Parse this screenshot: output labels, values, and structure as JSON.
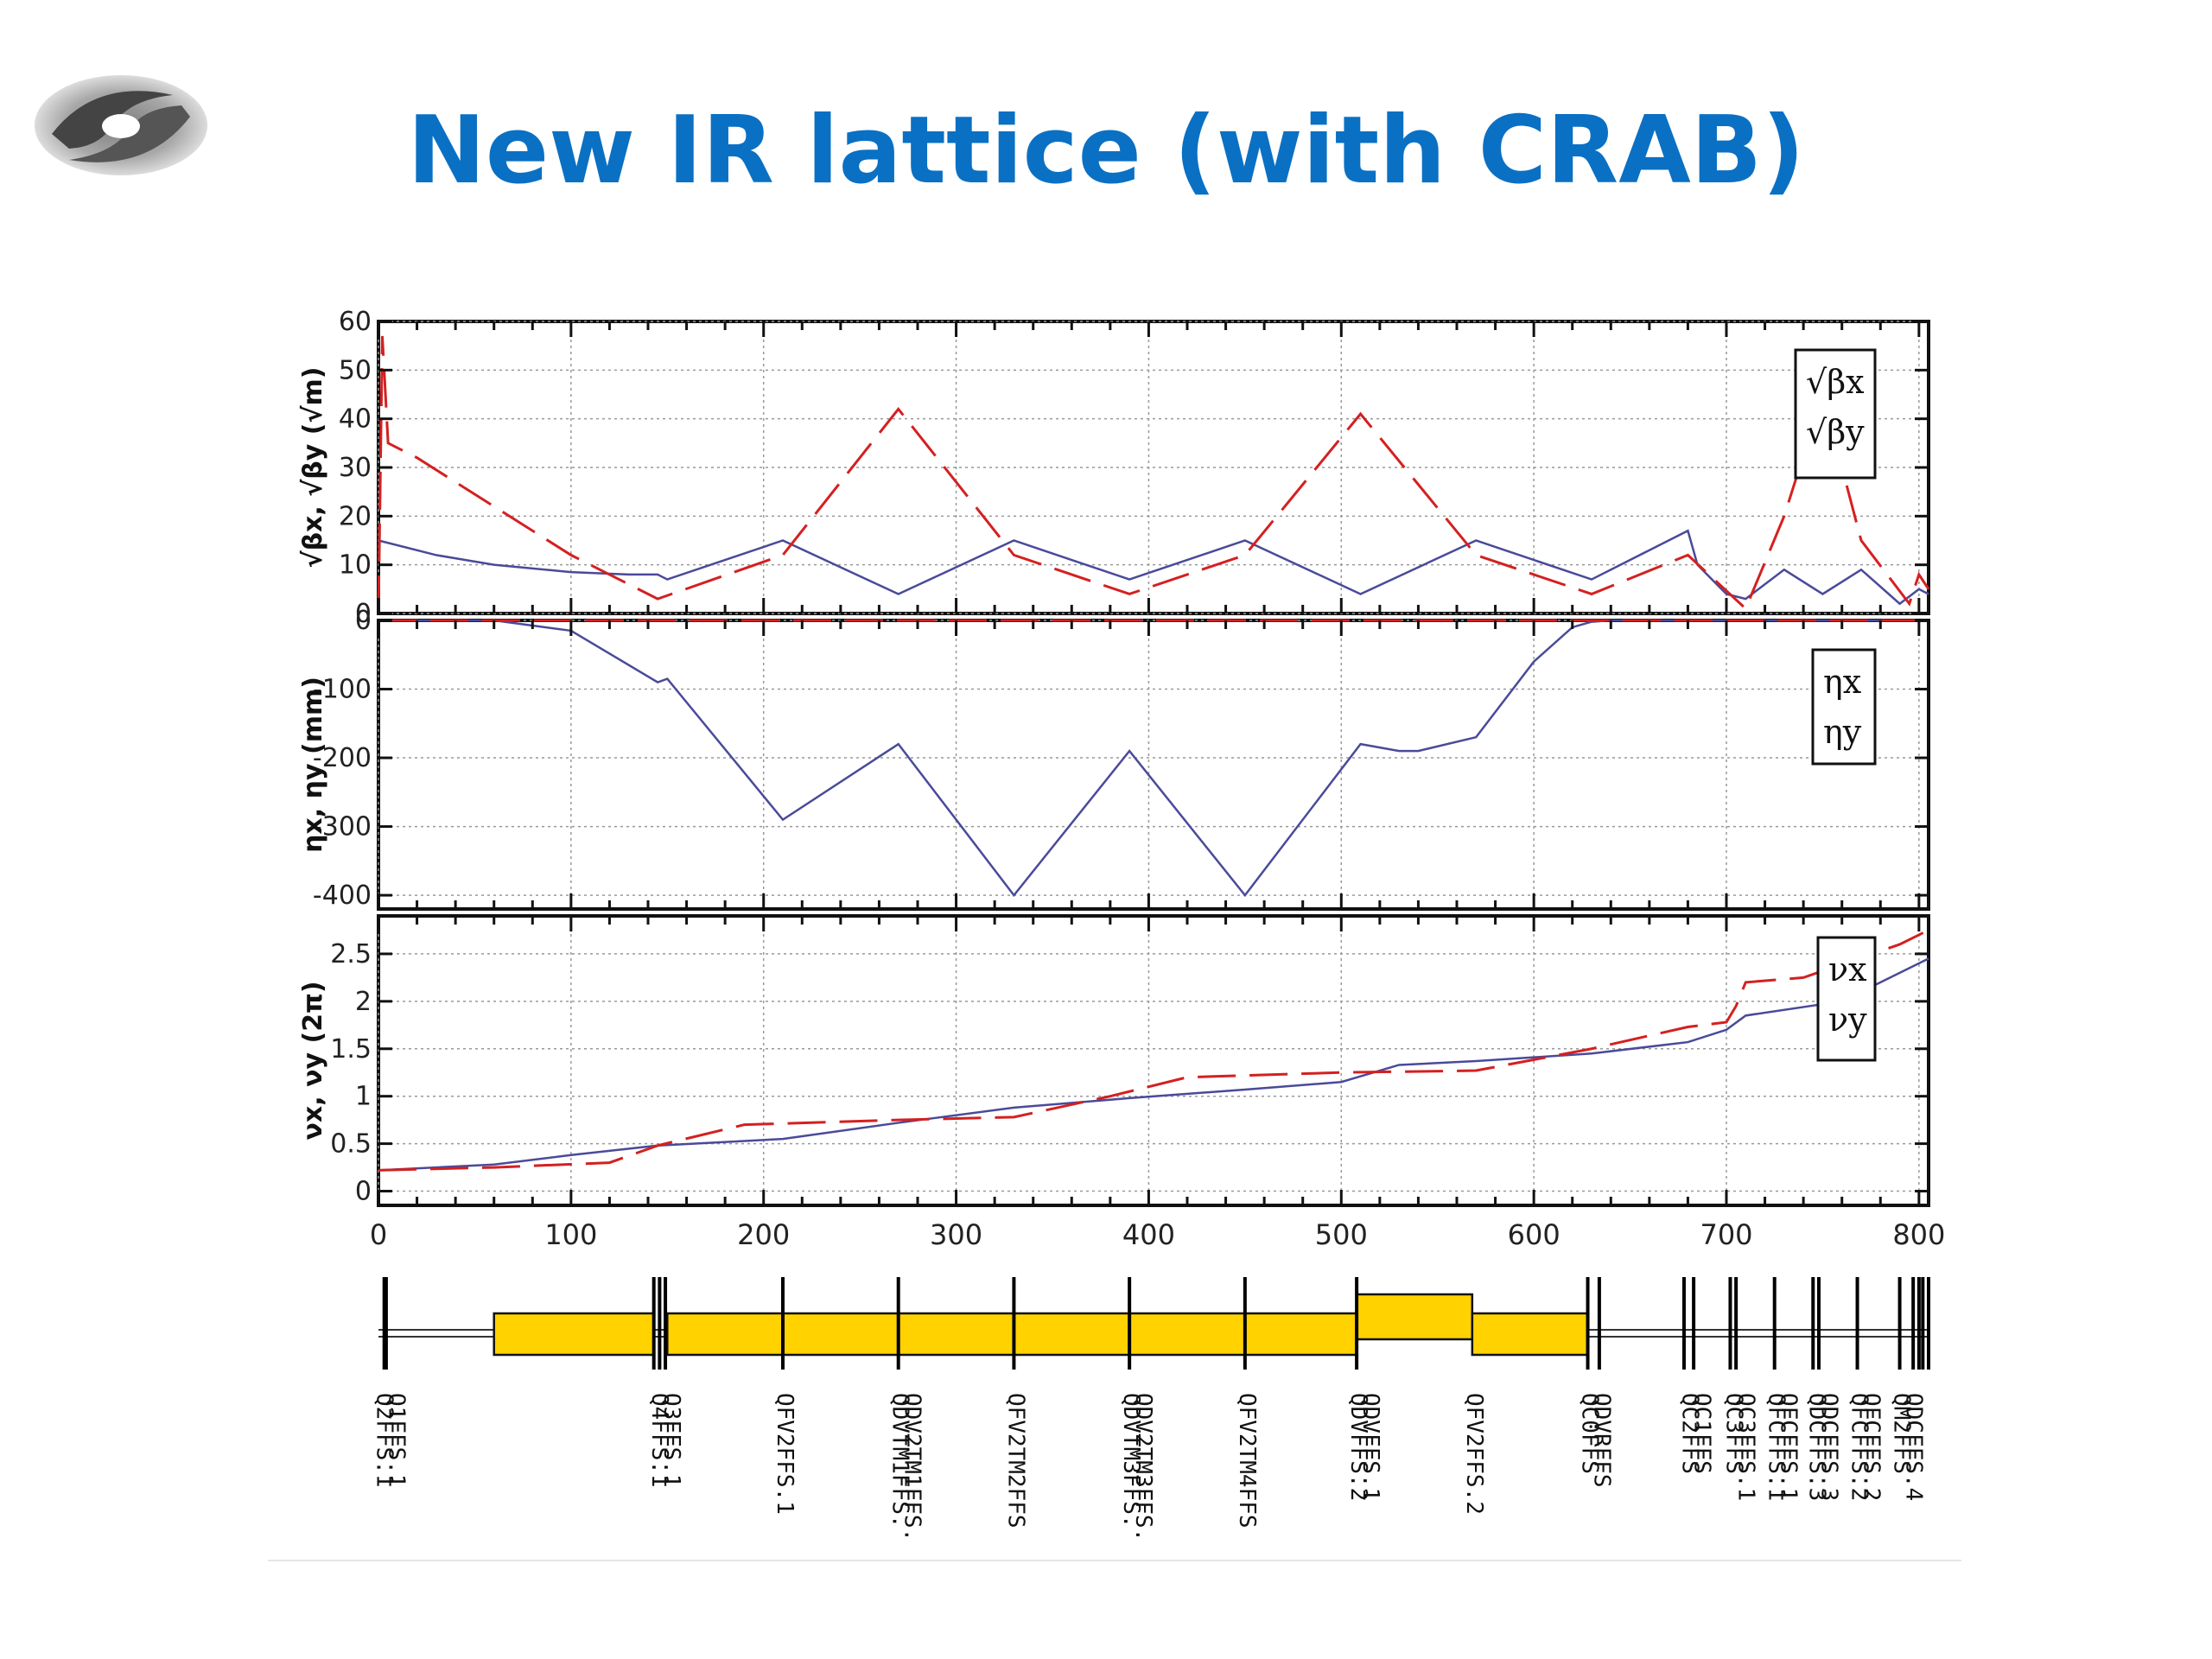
{
  "slide": {
    "title": "New IR lattice (with CRAB)"
  },
  "colors": {
    "title": "#0a70c4",
    "red_series": "#d42020",
    "blue_series": "#4a4a9a",
    "element_fill": "#ffd200"
  },
  "chart_data": [
    {
      "type": "line",
      "panel": "beta",
      "ylabel": "√βx, √βy (√m)",
      "ylim": [
        0,
        60
      ],
      "yticks": [
        "60",
        "50",
        "40",
        "30",
        "20",
        "10",
        "0"
      ],
      "grid": true,
      "legend": [
        "√βx",
        "√βy"
      ],
      "legend_position": "top-right",
      "series": [
        {
          "name": "√βx",
          "color": "#4a4a9a",
          "style": "solid",
          "x": [
            0,
            30,
            60,
            100,
            130,
            145,
            150,
            210,
            270,
            330,
            390,
            450,
            510,
            570,
            630,
            680,
            685,
            700,
            710,
            730,
            750,
            770,
            790,
            800,
            805
          ],
          "y": [
            15,
            12,
            10,
            8.5,
            8,
            8,
            7,
            15,
            4,
            15,
            7,
            15,
            4,
            15,
            7,
            17,
            10,
            4,
            3,
            9,
            4,
            9,
            2,
            5,
            4
          ]
        },
        {
          "name": "√βy",
          "color": "#d42020",
          "style": "dashed",
          "x": [
            0,
            2,
            5,
            20,
            60,
            100,
            145,
            210,
            270,
            330,
            390,
            450,
            510,
            570,
            630,
            680,
            710,
            730,
            750,
            770,
            795,
            800,
            805
          ],
          "y": [
            0,
            57,
            35,
            32,
            22,
            12,
            3,
            12,
            42,
            12,
            4,
            12,
            41,
            12,
            4,
            12,
            1,
            20,
            45,
            15,
            2,
            8,
            5
          ]
        }
      ]
    },
    {
      "type": "line",
      "panel": "dispersion",
      "ylabel": "ηx, ηy (mm)",
      "ylim": [
        -420,
        0
      ],
      "yticks": [
        "0",
        "-100",
        "-200",
        "-300",
        "-400"
      ],
      "grid": true,
      "legend": [
        "ηx",
        "ηy"
      ],
      "legend_position": "top-right",
      "series": [
        {
          "name": "ηx",
          "color": "#4a4a9a",
          "style": "solid",
          "x": [
            0,
            60,
            100,
            145,
            150,
            210,
            270,
            330,
            390,
            450,
            510,
            530,
            540,
            570,
            600,
            620,
            630,
            640,
            805
          ],
          "y": [
            0,
            0,
            -15,
            -90,
            -85,
            -290,
            -180,
            -400,
            -190,
            -400,
            -180,
            -190,
            -190,
            -170,
            -60,
            -10,
            -2,
            0,
            0
          ]
        },
        {
          "name": "ηy",
          "color": "#d42020",
          "style": "dashed",
          "x": [
            0,
            805
          ],
          "y": [
            0,
            0
          ]
        }
      ]
    },
    {
      "type": "line",
      "panel": "phase",
      "ylabel": "νx, νy (2π)",
      "ylim": [
        -0.15,
        2.9
      ],
      "yticks": [
        "2.5",
        "2",
        "1.5",
        "1",
        "0.5",
        "0"
      ],
      "xlim": [
        0,
        805
      ],
      "xticks": [
        "0",
        "100",
        "200",
        "300",
        "400",
        "500",
        "600",
        "700",
        "800"
      ],
      "grid": true,
      "legend": [
        "νx",
        "νy"
      ],
      "legend_position": "top-right",
      "series": [
        {
          "name": "νx",
          "color": "#4a4a9a",
          "style": "solid",
          "x": [
            0,
            60,
            100,
            145,
            210,
            270,
            330,
            390,
            450,
            500,
            530,
            570,
            630,
            680,
            700,
            710,
            760,
            790,
            805
          ],
          "y": [
            0.22,
            0.28,
            0.38,
            0.48,
            0.55,
            0.72,
            0.88,
            0.98,
            1.07,
            1.15,
            1.33,
            1.37,
            1.45,
            1.57,
            1.7,
            1.85,
            2.0,
            2.3,
            2.45
          ]
        },
        {
          "name": "νy",
          "color": "#d42020",
          "style": "dashed",
          "x": [
            0,
            60,
            120,
            145,
            190,
            270,
            330,
            380,
            420,
            500,
            570,
            630,
            680,
            700,
            705,
            710,
            740,
            790,
            805
          ],
          "y": [
            0.22,
            0.25,
            0.3,
            0.48,
            0.7,
            0.75,
            0.78,
            1.0,
            1.2,
            1.25,
            1.27,
            1.5,
            1.73,
            1.78,
            1.95,
            2.2,
            2.25,
            2.6,
            2.75
          ]
        }
      ]
    },
    {
      "type": "element-layout",
      "panel": "lattice",
      "blocks": [
        {
          "x0": 60,
          "x1": 143,
          "level": "low"
        },
        {
          "x0": 150,
          "x1": 508,
          "level": "low"
        },
        {
          "x0": 508,
          "x1": 568,
          "level": "high"
        },
        {
          "x0": 568,
          "x1": 628,
          "level": "low"
        }
      ],
      "markers": [
        3,
        4,
        143,
        146,
        149,
        210,
        270,
        330,
        390,
        450,
        508,
        628,
        634,
        678,
        683,
        702,
        705,
        725,
        745,
        748,
        768,
        790,
        797,
        800,
        802,
        805
      ],
      "labels": [
        {
          "x": 2,
          "lines": [
            "Q2FFS.1",
            "Q1FFS.1"
          ]
        },
        {
          "x": 145,
          "lines": [
            "Q4FFS.1",
            "Q3FFS.1"
          ]
        },
        {
          "x": 210,
          "lines": [
            "QFV2FFS.1"
          ]
        },
        {
          "x": 270,
          "lines": [
            "QDVTM1FFS.",
            "QDV2TM1FFS."
          ]
        },
        {
          "x": 330,
          "lines": [
            "QFV2TM2FFS"
          ]
        },
        {
          "x": 390,
          "lines": [
            "QDVTM3FFS.",
            "QDV2TM3FFS."
          ]
        },
        {
          "x": 450,
          "lines": [
            "QFV2TM4FFS"
          ]
        },
        {
          "x": 508,
          "lines": [
            "QDVFFS.2",
            "QDVFFS.1"
          ]
        },
        {
          "x": 568,
          "lines": [
            "QFV2FFS.2"
          ]
        },
        {
          "x": 628,
          "lines": [
            "QC0FFS",
            "QDVRFFS"
          ]
        },
        {
          "x": 680,
          "lines": [
            "QC2FFS",
            "QC1FFS"
          ]
        },
        {
          "x": 703,
          "lines": [
            "QC3FFS",
            "QC3FFS.1"
          ]
        },
        {
          "x": 725,
          "lines": [
            "QFCFFS.1",
            "QFCFFS.1"
          ]
        },
        {
          "x": 746,
          "lines": [
            "QDCFFS.3",
            "QDCFFS.3"
          ]
        },
        {
          "x": 768,
          "lines": [
            "QFCFFS.2",
            "QFCFFS.2"
          ]
        },
        {
          "x": 790,
          "lines": [
            "QM2FFS",
            "QDCFFS.4"
          ]
        }
      ]
    }
  ]
}
